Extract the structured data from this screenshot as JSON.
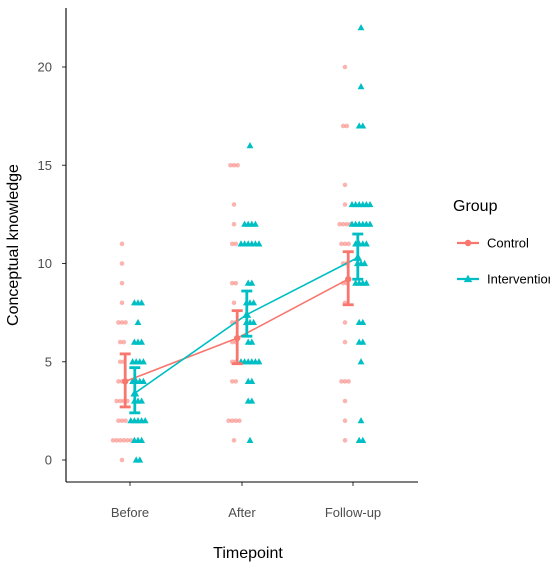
{
  "chart_data": {
    "type": "scatter",
    "title": "",
    "xlabel": "Timepoint",
    "ylabel": "Conceptual knowledge",
    "categories": [
      "Before",
      "After",
      "Follow-up"
    ],
    "ylim": [
      -1,
      23
    ],
    "yticks": [
      0,
      5,
      10,
      15,
      20
    ],
    "legend": {
      "title": "Group",
      "placement": "right"
    },
    "series": [
      {
        "name": "Control",
        "color": "#F8766D",
        "marker": "circle",
        "means": [
          4.0,
          6.2,
          9.2
        ],
        "ci_low": [
          2.7,
          4.9,
          7.9
        ],
        "ci_high": [
          5.4,
          7.6,
          10.6
        ],
        "points": [
          [
            0,
            11,
            1
          ],
          [
            0,
            10,
            1
          ],
          [
            0,
            9,
            1
          ],
          [
            0,
            8,
            1
          ],
          [
            0,
            7,
            3
          ],
          [
            0,
            6,
            2
          ],
          [
            0,
            5,
            2
          ],
          [
            0,
            4,
            3
          ],
          [
            0,
            3,
            4
          ],
          [
            0,
            2,
            3
          ],
          [
            0,
            1,
            6
          ],
          [
            0,
            0,
            1
          ],
          [
            1,
            15,
            3
          ],
          [
            1,
            13,
            1
          ],
          [
            1,
            12,
            1
          ],
          [
            1,
            11,
            2
          ],
          [
            1,
            9,
            2
          ],
          [
            1,
            8,
            1
          ],
          [
            1,
            7,
            2
          ],
          [
            1,
            6,
            2
          ],
          [
            1,
            5,
            2
          ],
          [
            1,
            4,
            2
          ],
          [
            1,
            2,
            4
          ],
          [
            1,
            1,
            1
          ],
          [
            2,
            20,
            1
          ],
          [
            2,
            17,
            2
          ],
          [
            2,
            14,
            1
          ],
          [
            2,
            13,
            1
          ],
          [
            2,
            12,
            4
          ],
          [
            2,
            11,
            3
          ],
          [
            2,
            10,
            2
          ],
          [
            2,
            9,
            2
          ],
          [
            2,
            8,
            1
          ],
          [
            2,
            7,
            1
          ],
          [
            2,
            6,
            1
          ],
          [
            2,
            4,
            3
          ],
          [
            2,
            3,
            1
          ],
          [
            2,
            2,
            1
          ],
          [
            2,
            1,
            1
          ]
        ]
      },
      {
        "name": "Intervention",
        "color": "#00BFC4",
        "marker": "triangle",
        "means": [
          3.4,
          7.4,
          10.3
        ],
        "ci_low": [
          2.4,
          6.3,
          9.2
        ],
        "ci_high": [
          4.7,
          8.6,
          11.5
        ],
        "points": [
          [
            0,
            8,
            3
          ],
          [
            0,
            7,
            1
          ],
          [
            0,
            6,
            3
          ],
          [
            0,
            5,
            4
          ],
          [
            0,
            4,
            4
          ],
          [
            0,
            3,
            3
          ],
          [
            0,
            2,
            5
          ],
          [
            0,
            1,
            3
          ],
          [
            0,
            0,
            2
          ],
          [
            1,
            16,
            1
          ],
          [
            1,
            12,
            4
          ],
          [
            1,
            11,
            6
          ],
          [
            1,
            9,
            2
          ],
          [
            1,
            8,
            3
          ],
          [
            1,
            7,
            3
          ],
          [
            1,
            6,
            2
          ],
          [
            1,
            5,
            6
          ],
          [
            1,
            4,
            2
          ],
          [
            1,
            3,
            2
          ],
          [
            1,
            1,
            1
          ],
          [
            2,
            22,
            1
          ],
          [
            2,
            19,
            1
          ],
          [
            2,
            17,
            2
          ],
          [
            2,
            13,
            6
          ],
          [
            2,
            12,
            6
          ],
          [
            2,
            11,
            4
          ],
          [
            2,
            10,
            3
          ],
          [
            2,
            9,
            4
          ],
          [
            2,
            7,
            2
          ],
          [
            2,
            6,
            2
          ],
          [
            2,
            5,
            1
          ],
          [
            2,
            2,
            1
          ],
          [
            2,
            1,
            2
          ]
        ]
      }
    ]
  }
}
